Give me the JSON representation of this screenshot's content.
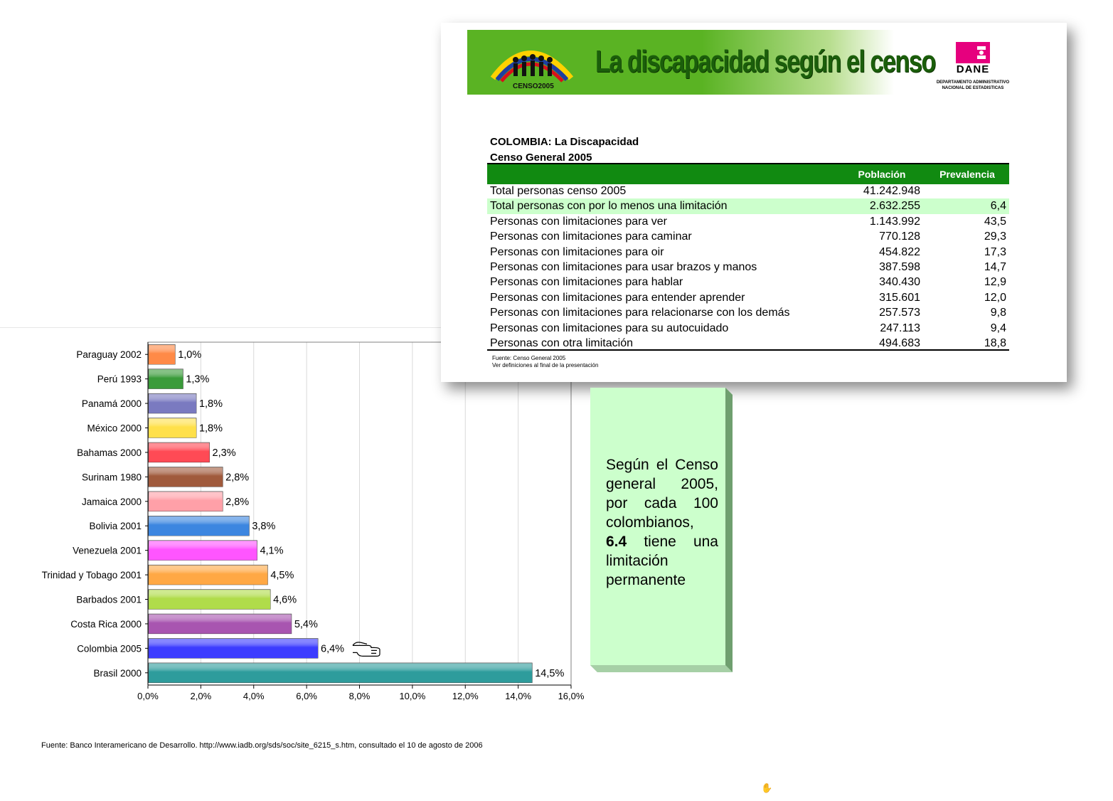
{
  "chart_data": {
    "type": "bar",
    "orientation": "horizontal",
    "categories": [
      "Paraguay 2002",
      "Perú 1993",
      "Panamá 2000",
      "México 2000",
      "Bahamas 2000",
      "Surinam 1980",
      "Jamaica 2000",
      "Bolivia 2001",
      "Venezuela 2001",
      "Trinidad y Tobago 2001",
      "Barbados 2001",
      "Costa Rica 2000",
      "Colombia 2005",
      "Brasil 2000"
    ],
    "values": [
      1.0,
      1.3,
      1.8,
      1.8,
      2.3,
      2.8,
      2.8,
      3.8,
      4.1,
      4.5,
      4.6,
      5.4,
      6.4,
      14.5
    ],
    "value_labels": [
      "1,0%",
      "1,3%",
      "1,8%",
      "1,8%",
      "2,3%",
      "2,8%",
      "2,8%",
      "3,8%",
      "4,1%",
      "4,5%",
      "4,6%",
      "5,4%",
      "6,4%",
      "14,5%"
    ],
    "colors": [
      "#ff8a47",
      "#3a9b3a",
      "#7a7ac0",
      "#ffe04a",
      "#ff4a55",
      "#a05a3c",
      "#ffa0a8",
      "#3c86e0",
      "#ff55ff",
      "#ffa844",
      "#b0dc4a",
      "#a855b0",
      "#3c3cff",
      "#2e9c9c"
    ],
    "xlim": [
      0,
      16
    ],
    "xticks": [
      "0,0%",
      "2,0%",
      "4,0%",
      "6,0%",
      "8,0%",
      "10,0%",
      "12,0%",
      "14,0%",
      "16,0%"
    ],
    "grid": true,
    "highlight_category": "Colombia 2005",
    "highlight_icon": "pointing-hand-icon"
  },
  "chart_footer": "Fuente: Banco Interamericano de Desarrollo. http://www.iadb.org/sds/soc/site_6215_s.htm,  consultado el 10 de agosto de 2006",
  "slide": {
    "banner_title": "La discapacidad según el censo",
    "censo_logo_text": "CENSO2005",
    "dane": {
      "name": "DANE",
      "subtitle_1": "DEPARTAMENTO ADMINISTRATIVO",
      "subtitle_2": "NACIONAL DE ESTADISTICAS",
      "color": "#e6007e"
    },
    "table": {
      "title_1": "COLOMBIA: La Discapacidad",
      "title_2": "Censo General 2005",
      "header": [
        "",
        "Población",
        "Prevalencia"
      ],
      "rows": [
        {
          "label": "Total personas censo 2005",
          "poblacion": "41.242.948",
          "prevalencia": ""
        },
        {
          "label": "Total personas con por lo menos una limitación",
          "poblacion": "2.632.255",
          "prevalencia": "6,4"
        },
        {
          "label": "Personas con limitaciones para ver",
          "poblacion": "1.143.992",
          "prevalencia": "43,5"
        },
        {
          "label": "Personas con limitaciones para caminar",
          "poblacion": "770.128",
          "prevalencia": "29,3"
        },
        {
          "label": "Personas con limitaciones para oir",
          "poblacion": "454.822",
          "prevalencia": "17,3"
        },
        {
          "label": "Personas con limitaciones para usar brazos y manos",
          "poblacion": "387.598",
          "prevalencia": "14,7"
        },
        {
          "label": "Personas con limitaciones para hablar",
          "poblacion": "340.430",
          "prevalencia": "12,9"
        },
        {
          "label": "Personas con limitaciones para entender aprender",
          "poblacion": "315.601",
          "prevalencia": "12,0"
        },
        {
          "label": "Personas con limitaciones para relacionarse con los demás",
          "poblacion": "257.573",
          "prevalencia": "9,8"
        },
        {
          "label": "Personas con limitaciones para su autocuidado",
          "poblacion": "247.113",
          "prevalencia": "9,4"
        },
        {
          "label": "Personas con otra limitación",
          "poblacion": "494.683",
          "prevalencia": "18,8"
        }
      ],
      "footnote_1": "Fuente: Censo General 2005",
      "footnote_2": "Ver definiciones al final de la presentación"
    }
  },
  "callout": {
    "text_before": "Según el Censo general 2005, por cada 100 colombianos,",
    "bold": "6.4",
    "text_after": "tiene una limitación permanente"
  }
}
